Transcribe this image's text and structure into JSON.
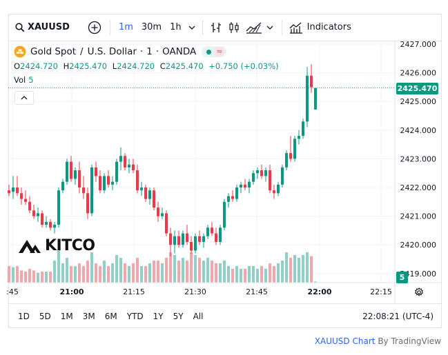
{
  "toolbar": {
    "symbol": "XAUUSD",
    "timeframes": [
      "1m",
      "30m",
      "1h"
    ],
    "active_timeframe": "1m",
    "indicators_label": "Indicators",
    "icons": [
      "search-icon",
      "add-symbol-icon",
      "chevron-down-icon",
      "bar-chart-icon",
      "candle-chart-icon",
      "area-chart-icon",
      "chevron-down-icon",
      "indicators-icon"
    ]
  },
  "legend": {
    "instrument": "Gold Spot",
    "sep1": "/",
    "quote": "U.S. Dollar",
    "interval": "1",
    "source": "OANDA",
    "o_label": "O",
    "o": "2424.720",
    "h_label": "H",
    "h": "2425.470",
    "l_label": "L",
    "l": "2424.720",
    "c_label": "C",
    "c": "2425.470",
    "change": "+0.750 (+0.03%)",
    "vol_label": "Vol",
    "vol_value": "5"
  },
  "colors": {
    "up": "#089981",
    "down": "#f23645",
    "vol_up": "#8ed0c6",
    "vol_down": "#f4a6ab",
    "accent": "#2962ff"
  },
  "price_badge": "2425.470",
  "vol_badge": "5",
  "watermark": "KITCO",
  "periods": [
    "1D",
    "5D",
    "1M",
    "3M",
    "6M",
    "YTD",
    "1Y",
    "5Y",
    "All"
  ],
  "clock": "22:08:21 (UTC-4)",
  "attribution": {
    "symbol": "XAUUSD",
    "chart_word": "Chart",
    "by_word": "By",
    "brand": "TradingView"
  },
  "chart_data": {
    "type": "candlestick",
    "title": "",
    "y_ticks": [
      "2427.000",
      "2426.000",
      "2425.000",
      "2424.000",
      "2423.000",
      "2422.000",
      "2421.000",
      "2420.000",
      "2419.000"
    ],
    "x_ticks": [
      ":45",
      "21:00",
      "21:15",
      "21:30",
      "21:45",
      "22:00",
      "22:15"
    ],
    "last_price": 2425.47,
    "candles": [
      {
        "o": 2421.9,
        "h": 2422.1,
        "l": 2421.7,
        "c": 2421.8,
        "v": 0.3
      },
      {
        "o": 2421.85,
        "h": 2422.4,
        "l": 2421.6,
        "c": 2422.0,
        "v": 0.28
      },
      {
        "o": 2422.0,
        "h": 2422.4,
        "l": 2421.7,
        "c": 2421.8,
        "v": 0.3
      },
      {
        "o": 2421.8,
        "h": 2422.0,
        "l": 2421.4,
        "c": 2421.6,
        "v": 0.22
      },
      {
        "o": 2421.6,
        "h": 2421.9,
        "l": 2421.4,
        "c": 2421.5,
        "v": 0.2
      },
      {
        "o": 2421.5,
        "h": 2421.7,
        "l": 2421.1,
        "c": 2421.2,
        "v": 0.25
      },
      {
        "o": 2421.2,
        "h": 2421.4,
        "l": 2420.9,
        "c": 2421.0,
        "v": 0.22
      },
      {
        "o": 2421.0,
        "h": 2421.3,
        "l": 2420.8,
        "c": 2421.1,
        "v": 0.18
      },
      {
        "o": 2421.1,
        "h": 2421.2,
        "l": 2420.6,
        "c": 2420.7,
        "v": 0.2
      },
      {
        "o": 2420.7,
        "h": 2421.0,
        "l": 2420.6,
        "c": 2420.8,
        "v": 0.2
      },
      {
        "o": 2420.8,
        "h": 2420.9,
        "l": 2420.5,
        "c": 2420.6,
        "v": 0.2
      },
      {
        "o": 2420.6,
        "h": 2420.8,
        "l": 2420.4,
        "c": 2420.7,
        "v": 0.4
      },
      {
        "o": 2420.7,
        "h": 2422.0,
        "l": 2420.6,
        "c": 2421.9,
        "v": 0.6
      },
      {
        "o": 2421.9,
        "h": 2422.3,
        "l": 2421.8,
        "c": 2422.2,
        "v": 0.35
      },
      {
        "o": 2422.2,
        "h": 2423.0,
        "l": 2422.1,
        "c": 2422.9,
        "v": 0.45
      },
      {
        "o": 2422.9,
        "h": 2423.1,
        "l": 2422.2,
        "c": 2422.3,
        "v": 0.3
      },
      {
        "o": 2422.3,
        "h": 2422.7,
        "l": 2422.1,
        "c": 2422.6,
        "v": 0.3
      },
      {
        "o": 2422.6,
        "h": 2422.9,
        "l": 2421.8,
        "c": 2422.0,
        "v": 0.35
      },
      {
        "o": 2422.0,
        "h": 2422.4,
        "l": 2421.6,
        "c": 2421.8,
        "v": 0.3
      },
      {
        "o": 2421.8,
        "h": 2422.0,
        "l": 2420.9,
        "c": 2421.1,
        "v": 0.4
      },
      {
        "o": 2421.1,
        "h": 2422.8,
        "l": 2421.0,
        "c": 2422.7,
        "v": 0.55
      },
      {
        "o": 2422.7,
        "h": 2422.9,
        "l": 2422.2,
        "c": 2422.4,
        "v": 0.35
      },
      {
        "o": 2422.4,
        "h": 2422.6,
        "l": 2421.8,
        "c": 2421.9,
        "v": 0.3
      },
      {
        "o": 2421.9,
        "h": 2422.5,
        "l": 2421.8,
        "c": 2422.4,
        "v": 0.4
      },
      {
        "o": 2422.4,
        "h": 2422.6,
        "l": 2422.0,
        "c": 2422.1,
        "v": 0.3
      },
      {
        "o": 2422.1,
        "h": 2422.4,
        "l": 2421.9,
        "c": 2422.2,
        "v": 0.35
      },
      {
        "o": 2422.2,
        "h": 2423.0,
        "l": 2422.1,
        "c": 2422.9,
        "v": 0.5
      },
      {
        "o": 2422.9,
        "h": 2423.4,
        "l": 2422.6,
        "c": 2423.1,
        "v": 0.45
      },
      {
        "o": 2423.1,
        "h": 2423.2,
        "l": 2422.6,
        "c": 2422.7,
        "v": 0.35
      },
      {
        "o": 2422.7,
        "h": 2423.0,
        "l": 2422.5,
        "c": 2422.8,
        "v": 0.3
      },
      {
        "o": 2422.8,
        "h": 2423.0,
        "l": 2422.5,
        "c": 2422.6,
        "v": 0.35
      },
      {
        "o": 2422.6,
        "h": 2422.8,
        "l": 2421.8,
        "c": 2421.9,
        "v": 0.45
      },
      {
        "o": 2421.9,
        "h": 2422.2,
        "l": 2421.7,
        "c": 2422.0,
        "v": 0.3
      },
      {
        "o": 2422.0,
        "h": 2422.1,
        "l": 2421.5,
        "c": 2421.6,
        "v": 0.3
      },
      {
        "o": 2421.6,
        "h": 2422.0,
        "l": 2421.4,
        "c": 2421.9,
        "v": 0.35
      },
      {
        "o": 2421.9,
        "h": 2422.0,
        "l": 2421.2,
        "c": 2421.3,
        "v": 0.4
      },
      {
        "o": 2421.3,
        "h": 2421.5,
        "l": 2420.8,
        "c": 2421.0,
        "v": 0.4
      },
      {
        "o": 2421.0,
        "h": 2421.3,
        "l": 2420.9,
        "c": 2421.1,
        "v": 0.35
      },
      {
        "o": 2421.1,
        "h": 2421.2,
        "l": 2420.3,
        "c": 2420.4,
        "v": 0.45
      },
      {
        "o": 2420.4,
        "h": 2420.6,
        "l": 2419.6,
        "c": 2420.0,
        "v": 0.55
      },
      {
        "o": 2420.0,
        "h": 2420.5,
        "l": 2419.7,
        "c": 2420.3,
        "v": 0.5
      },
      {
        "o": 2420.3,
        "h": 2420.5,
        "l": 2419.9,
        "c": 2420.0,
        "v": 0.4
      },
      {
        "o": 2420.0,
        "h": 2420.5,
        "l": 2419.9,
        "c": 2420.4,
        "v": 0.45
      },
      {
        "o": 2420.4,
        "h": 2420.7,
        "l": 2420.0,
        "c": 2420.1,
        "v": 0.4
      },
      {
        "o": 2420.1,
        "h": 2420.3,
        "l": 2419.7,
        "c": 2419.8,
        "v": 0.55
      },
      {
        "o": 2419.8,
        "h": 2420.4,
        "l": 2419.7,
        "c": 2420.3,
        "v": 0.5
      },
      {
        "o": 2420.3,
        "h": 2420.5,
        "l": 2420.0,
        "c": 2420.1,
        "v": 0.45
      },
      {
        "o": 2420.1,
        "h": 2420.4,
        "l": 2419.9,
        "c": 2420.3,
        "v": 0.4
      },
      {
        "o": 2420.3,
        "h": 2420.7,
        "l": 2420.2,
        "c": 2420.6,
        "v": 0.45
      },
      {
        "o": 2420.6,
        "h": 2420.8,
        "l": 2420.3,
        "c": 2420.4,
        "v": 0.4
      },
      {
        "o": 2420.4,
        "h": 2420.6,
        "l": 2420.0,
        "c": 2420.1,
        "v": 0.35
      },
      {
        "o": 2420.1,
        "h": 2420.7,
        "l": 2420.0,
        "c": 2420.6,
        "v": 0.35
      },
      {
        "o": 2420.6,
        "h": 2421.6,
        "l": 2420.5,
        "c": 2421.5,
        "v": 0.4
      },
      {
        "o": 2421.5,
        "h": 2421.8,
        "l": 2421.3,
        "c": 2421.7,
        "v": 0.3
      },
      {
        "o": 2421.7,
        "h": 2421.9,
        "l": 2421.5,
        "c": 2421.6,
        "v": 0.25
      },
      {
        "o": 2421.6,
        "h": 2422.1,
        "l": 2421.5,
        "c": 2422.0,
        "v": 0.3
      },
      {
        "o": 2422.0,
        "h": 2422.2,
        "l": 2421.8,
        "c": 2422.1,
        "v": 0.25
      },
      {
        "o": 2422.1,
        "h": 2422.3,
        "l": 2421.9,
        "c": 2422.0,
        "v": 0.25
      },
      {
        "o": 2422.0,
        "h": 2422.3,
        "l": 2421.8,
        "c": 2422.2,
        "v": 0.3
      },
      {
        "o": 2422.2,
        "h": 2422.6,
        "l": 2422.1,
        "c": 2422.5,
        "v": 0.3
      },
      {
        "o": 2422.5,
        "h": 2422.7,
        "l": 2422.3,
        "c": 2422.6,
        "v": 0.25
      },
      {
        "o": 2422.6,
        "h": 2422.8,
        "l": 2422.3,
        "c": 2422.4,
        "v": 0.3
      },
      {
        "o": 2422.4,
        "h": 2422.7,
        "l": 2422.2,
        "c": 2422.6,
        "v": 0.25
      },
      {
        "o": 2422.6,
        "h": 2422.8,
        "l": 2421.8,
        "c": 2421.9,
        "v": 0.35
      },
      {
        "o": 2421.9,
        "h": 2422.1,
        "l": 2421.6,
        "c": 2421.8,
        "v": 0.3
      },
      {
        "o": 2421.8,
        "h": 2422.2,
        "l": 2421.7,
        "c": 2422.1,
        "v": 0.35
      },
      {
        "o": 2422.1,
        "h": 2422.8,
        "l": 2422.0,
        "c": 2422.7,
        "v": 0.4
      },
      {
        "o": 2422.7,
        "h": 2423.3,
        "l": 2422.6,
        "c": 2423.2,
        "v": 0.55
      },
      {
        "o": 2423.2,
        "h": 2423.8,
        "l": 2422.9,
        "c": 2423.0,
        "v": 0.45
      },
      {
        "o": 2423.0,
        "h": 2423.8,
        "l": 2422.9,
        "c": 2423.7,
        "v": 0.5
      },
      {
        "o": 2423.7,
        "h": 2424.0,
        "l": 2423.5,
        "c": 2423.8,
        "v": 0.45
      },
      {
        "o": 2423.8,
        "h": 2424.4,
        "l": 2423.7,
        "c": 2424.3,
        "v": 0.5
      },
      {
        "o": 2424.3,
        "h": 2426.2,
        "l": 2424.1,
        "c": 2425.9,
        "v": 0.55
      },
      {
        "o": 2425.9,
        "h": 2426.3,
        "l": 2425.3,
        "c": 2425.5,
        "v": 0.48
      },
      {
        "o": 2424.72,
        "h": 2425.47,
        "l": 2424.72,
        "c": 2425.47,
        "v": 0.02
      }
    ]
  }
}
